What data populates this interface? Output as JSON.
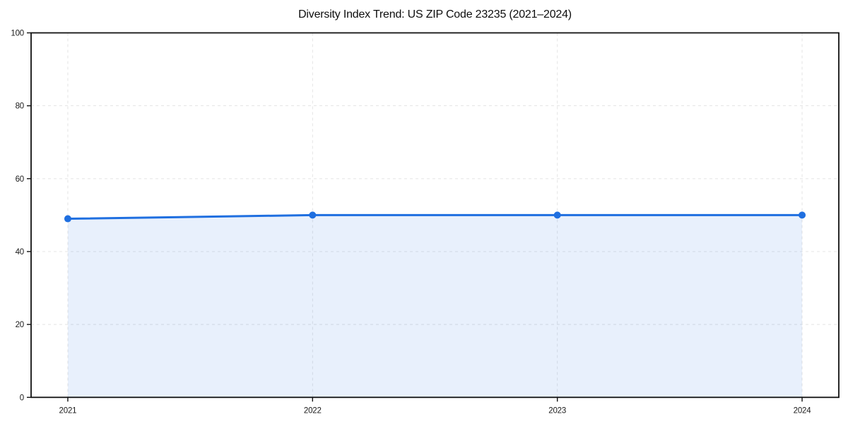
{
  "title": "Diversity Index Trend: US ZIP Code 23235 (2021–2024)",
  "chart_data": {
    "type": "area",
    "title": "Diversity Index Trend: US ZIP Code 23235 (2021–2024)",
    "categories": [
      "2021",
      "2022",
      "2023",
      "2024"
    ],
    "series": [
      {
        "name": "Diversity Index",
        "values": [
          49,
          50,
          50,
          50
        ]
      }
    ],
    "xlabel": "",
    "ylabel": "",
    "ylim": [
      0,
      100
    ],
    "yticks": [
      0,
      20,
      40,
      60,
      80,
      100
    ],
    "grid": true,
    "grid_style": "dashed",
    "legend_position": "none",
    "marker": "circle",
    "colors": {
      "line": "#1f6fe0",
      "marker": "#1f6fe0",
      "fill": "rgba(31, 111, 224, 0.10)",
      "grid": "#e4e4e4",
      "axis": "#111111",
      "tick_text": "#1a1a1a",
      "title_text": "#0d0d0d",
      "background": "#ffffff"
    }
  }
}
